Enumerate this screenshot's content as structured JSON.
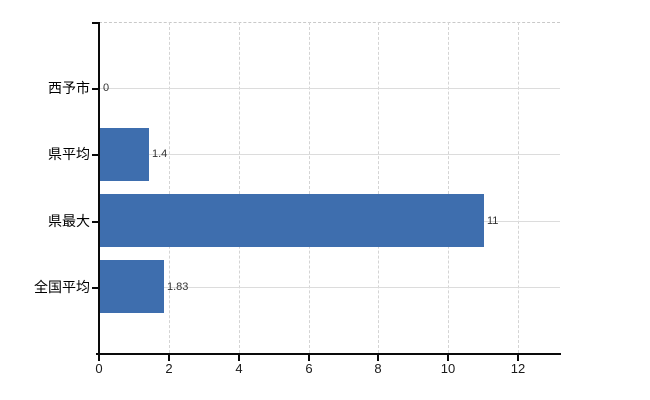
{
  "chart_data": {
    "type": "bar",
    "orientation": "horizontal",
    "title": "",
    "categories": [
      "西予市",
      "県平均",
      "県最大",
      "全国平均"
    ],
    "values": [
      0,
      1.4,
      11,
      1.83
    ],
    "value_labels": [
      "0",
      "1.4",
      "11",
      "1.83"
    ],
    "x_ticks": [
      0,
      2,
      4,
      6,
      8,
      10,
      12
    ],
    "x_tick_labels": [
      "0",
      "2",
      "4",
      "6",
      "8",
      "10",
      "12"
    ],
    "xlim": [
      0,
      13.2
    ],
    "grid": true,
    "legend": "none",
    "colors": {
      "bar": "#3E6EAE",
      "axis": "#0a0a0a",
      "gridline_horizontal": "#dcdcdc",
      "gridline_vertical": "#d4d4d4",
      "plot_top_border": "#c9c9c9",
      "value_label_text": "#333333",
      "category_label_text": "#000000",
      "tick_label_text": "#1a1a1a",
      "background": "#ffffff"
    }
  }
}
